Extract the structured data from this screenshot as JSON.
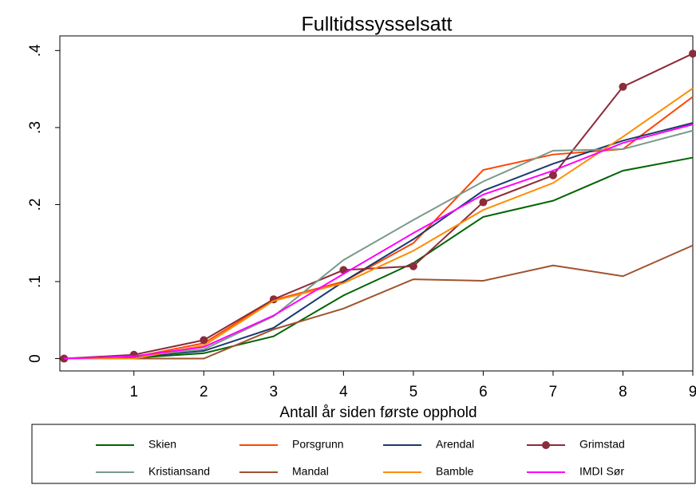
{
  "chart_data": {
    "type": "line",
    "title": "Fulltidssysselsatt",
    "x_label": "Antall år siden første opphold",
    "x": [
      0,
      1,
      2,
      3,
      4,
      5,
      6,
      7,
      8,
      9
    ],
    "xlim": [
      -0.06,
      9
    ],
    "xticks": [
      1,
      2,
      3,
      4,
      5,
      6,
      7,
      8,
      9
    ],
    "ylim": [
      -0.016,
      0.419
    ],
    "yticks": [
      0,
      {
        "value": 0.1,
        "label": ".1"
      },
      {
        "value": 0.2,
        "label": ".2"
      },
      {
        "value": 0.3,
        "label": ".3"
      },
      {
        "value": 0.4,
        "label": ".4"
      }
    ],
    "legend": "bottom",
    "series": [
      {
        "name": "Skien",
        "color": "#006400",
        "values": [
          0,
          0.001,
          0.007,
          0.029,
          0.082,
          0.124,
          0.184,
          0.205,
          0.244,
          0.261
        ]
      },
      {
        "name": "Porsgrunn",
        "color": "#ff4500",
        "values": [
          0,
          0.002,
          0.02,
          0.076,
          0.1,
          0.15,
          0.245,
          0.265,
          0.272,
          0.34
        ]
      },
      {
        "name": "Arendal",
        "color": "#1a3a6e",
        "values": [
          0,
          0.002,
          0.01,
          0.04,
          0.1,
          0.155,
          0.218,
          0.253,
          0.283,
          0.306
        ]
      },
      {
        "name": "Grimstad",
        "color": "#8b2c3a",
        "marker": "circle",
        "values": [
          0,
          0.005,
          0.024,
          0.077,
          0.115,
          0.12,
          0.203,
          0.238,
          0.353,
          0.396
        ]
      },
      {
        "name": "Kristiansand",
        "color": "#7a9a8a",
        "values": [
          0,
          0.003,
          0.012,
          0.055,
          0.128,
          0.18,
          0.23,
          0.27,
          0.272,
          0.296
        ]
      },
      {
        "name": "Mandal",
        "color": "#a0522d",
        "values": [
          0,
          0,
          0,
          0.038,
          0.065,
          0.103,
          0.101,
          0.121,
          0.107,
          0.147
        ]
      },
      {
        "name": "Bamble",
        "color": "#ff8c00",
        "values": [
          0,
          0,
          0.017,
          0.075,
          0.098,
          0.14,
          0.193,
          0.228,
          0.288,
          0.351
        ]
      },
      {
        "name": "IMDI Sør",
        "color": "#ff00ff",
        "values": [
          0,
          0.003,
          0.015,
          0.056,
          0.11,
          0.163,
          0.213,
          0.244,
          0.28,
          0.304
        ]
      }
    ]
  }
}
